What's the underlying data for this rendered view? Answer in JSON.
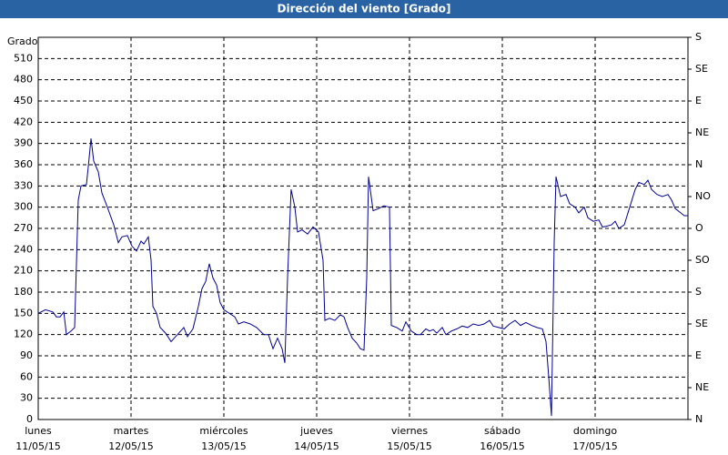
{
  "chart_data": {
    "type": "line",
    "title": "Dirección del viento [Grado]",
    "y_label": "Grado",
    "color": "#000099",
    "grid": true,
    "xlim": [
      0,
      7
    ],
    "xticks": [
      {
        "value": 0,
        "label": "lunes",
        "date": "11/05/15"
      },
      {
        "value": 1,
        "label": "martes",
        "date": "12/05/15"
      },
      {
        "value": 2,
        "label": "miércoles",
        "date": "13/05/15"
      },
      {
        "value": 3,
        "label": "jueves",
        "date": "14/05/15"
      },
      {
        "value": 4,
        "label": "viernes",
        "date": "15/05/15"
      },
      {
        "value": 5,
        "label": "sábado",
        "date": "16/05/15"
      },
      {
        "value": 6,
        "label": "domingo",
        "date": "17/05/15"
      }
    ],
    "ylim": [
      0,
      540
    ],
    "yticks": [
      0,
      30,
      60,
      90,
      120,
      150,
      180,
      210,
      240,
      270,
      300,
      330,
      360,
      390,
      420,
      450,
      480,
      510
    ],
    "y2lim": [
      0,
      540
    ],
    "y2ticks": [
      {
        "value": 0,
        "label": "N"
      },
      {
        "value": 45,
        "label": "NE"
      },
      {
        "value": 90,
        "label": "E"
      },
      {
        "value": 135,
        "label": "SE"
      },
      {
        "value": 180,
        "label": "S"
      },
      {
        "value": 225,
        "label": "SO"
      },
      {
        "value": 270,
        "label": "O"
      },
      {
        "value": 315,
        "label": "NO"
      },
      {
        "value": 360,
        "label": "N"
      },
      {
        "value": 405,
        "label": "NE"
      },
      {
        "value": 450,
        "label": "E"
      },
      {
        "value": 495,
        "label": "SE"
      },
      {
        "value": 540,
        "label": "S"
      }
    ],
    "x": [
      0,
      0.078,
      0.157,
      0.196,
      0.235,
      0.275,
      0.304,
      0.353,
      0.392,
      0.431,
      0.461,
      0.52,
      0.549,
      0.569,
      0.598,
      0.647,
      0.686,
      0.745,
      0.814,
      0.863,
      0.902,
      0.961,
      1.01,
      1.059,
      1.108,
      1.137,
      1.186,
      1.216,
      1.235,
      1.275,
      1.314,
      1.373,
      1.431,
      1.5,
      1.569,
      1.608,
      1.667,
      1.725,
      1.765,
      1.804,
      1.843,
      1.882,
      1.922,
      1.961,
      2.0,
      2.059,
      2.118,
      2.157,
      2.216,
      2.284,
      2.353,
      2.431,
      2.48,
      2.529,
      2.578,
      2.627,
      2.657,
      2.686,
      2.725,
      2.765,
      2.794,
      2.843,
      2.902,
      2.961,
      3.02,
      3.069,
      3.088,
      3.137,
      3.196,
      3.255,
      3.294,
      3.333,
      3.382,
      3.431,
      3.471,
      3.51,
      3.539,
      3.559,
      3.608,
      3.667,
      3.725,
      3.784,
      3.804,
      3.863,
      3.922,
      3.961,
      4.02,
      4.078,
      4.118,
      4.176,
      4.216,
      4.255,
      4.294,
      4.353,
      4.392,
      4.451,
      4.51,
      4.569,
      4.627,
      4.686,
      4.745,
      4.804,
      4.863,
      4.902,
      4.961,
      5.02,
      5.078,
      5.137,
      5.196,
      5.255,
      5.314,
      5.373,
      5.431,
      5.471,
      5.5,
      5.529,
      5.559,
      5.578,
      5.627,
      5.686,
      5.725,
      5.784,
      5.824,
      5.882,
      5.922,
      5.98,
      6.039,
      6.078,
      6.118,
      6.176,
      6.216,
      6.255,
      6.314,
      6.373,
      6.431,
      6.471,
      6.529,
      6.569,
      6.608,
      6.667,
      6.725,
      6.784,
      6.824,
      6.863,
      6.922,
      6.961,
      7.0
    ],
    "values": [
      150,
      155,
      152,
      145,
      145,
      152,
      120,
      125,
      130,
      310,
      330,
      332,
      370,
      397,
      365,
      350,
      320,
      300,
      275,
      250,
      258,
      260,
      245,
      238,
      252,
      248,
      258,
      225,
      160,
      150,
      130,
      122,
      110,
      120,
      130,
      117,
      128,
      160,
      185,
      195,
      220,
      200,
      190,
      165,
      155,
      150,
      145,
      135,
      138,
      135,
      130,
      120,
      120,
      100,
      115,
      100,
      80,
      200,
      325,
      300,
      265,
      268,
      262,
      272,
      265,
      225,
      140,
      143,
      140,
      148,
      145,
      130,
      115,
      108,
      100,
      98,
      200,
      343,
      295,
      298,
      302,
      300,
      133,
      130,
      125,
      138,
      125,
      120,
      120,
      128,
      125,
      127,
      122,
      130,
      120,
      125,
      128,
      132,
      130,
      135,
      133,
      135,
      140,
      132,
      130,
      128,
      135,
      140,
      133,
      137,
      133,
      130,
      128,
      110,
      60,
      5,
      250,
      343,
      315,
      318,
      305,
      300,
      292,
      300,
      285,
      280,
      282,
      272,
      273,
      275,
      280,
      270,
      275,
      300,
      325,
      335,
      332,
      338,
      325,
      318,
      315,
      318,
      310,
      298,
      292,
      288,
      288
    ]
  }
}
